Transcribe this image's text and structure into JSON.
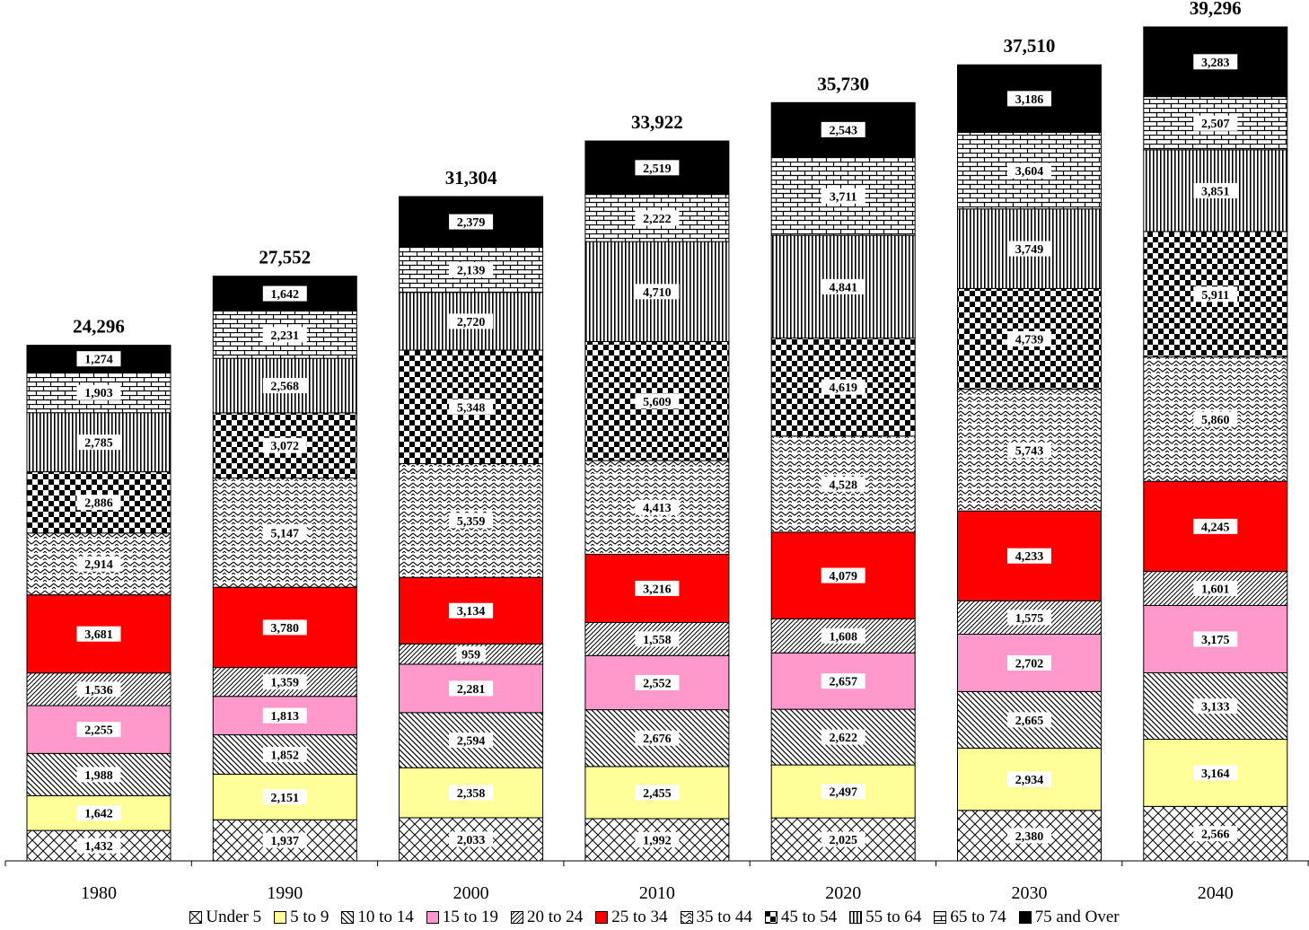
{
  "chart_data": {
    "type": "bar",
    "stacked": true,
    "categories": [
      "1980",
      "1990",
      "2000",
      "2010",
      "2020",
      "2030",
      "2040"
    ],
    "totals": [
      "24,296",
      "27,552",
      "31,304",
      "33,922",
      "35,730",
      "37,510",
      "39,296"
    ],
    "total_values": [
      24296,
      27552,
      31304,
      33922,
      35730,
      37510,
      39296
    ],
    "ylim": [
      0,
      40000
    ],
    "grid": false,
    "legend_position": "bottom",
    "series": [
      {
        "name": "Under 5",
        "pattern": "crosshatch",
        "color": "#000000",
        "values": [
          1432,
          1937,
          2033,
          1992,
          2025,
          2380,
          2566
        ],
        "labels": [
          "1,432",
          "1,937",
          "2,033",
          "1,992",
          "2,025",
          "2,380",
          "2,566"
        ]
      },
      {
        "name": "5 to 9",
        "pattern": "solid",
        "color": "#FFFF99",
        "values": [
          1642,
          2151,
          2358,
          2455,
          2497,
          2934,
          3164
        ],
        "labels": [
          "1,642",
          "2,151",
          "2,358",
          "2,455",
          "2,497",
          "2,934",
          "3,164"
        ]
      },
      {
        "name": "10 to 14",
        "pattern": "diag-down",
        "color": "#000000",
        "values": [
          1988,
          1852,
          2594,
          2676,
          2622,
          2665,
          3133
        ],
        "labels": [
          "1,988",
          "1,852",
          "2,594",
          "2,676",
          "2,622",
          "2,665",
          "3,133"
        ]
      },
      {
        "name": "15 to 19",
        "pattern": "solid",
        "color": "#FF99CC",
        "values": [
          2255,
          1813,
          2281,
          2552,
          2657,
          2702,
          3175
        ],
        "labels": [
          "2,255",
          "1,813",
          "2,281",
          "2,552",
          "2,657",
          "2,702",
          "3,175"
        ]
      },
      {
        "name": "20 to 24",
        "pattern": "diag-up",
        "color": "#000000",
        "values": [
          1536,
          1359,
          959,
          1558,
          1608,
          1575,
          1601
        ],
        "labels": [
          "1,536",
          "1,359",
          "959",
          "1,558",
          "1,608",
          "1,575",
          "1,601"
        ]
      },
      {
        "name": "25 to 34",
        "pattern": "solid",
        "color": "#FF0000",
        "values": [
          3681,
          3780,
          3134,
          3216,
          4079,
          4233,
          4245
        ],
        "labels": [
          "3,681",
          "3,780",
          "3,134",
          "3,216",
          "4,079",
          "4,233",
          "4,245"
        ]
      },
      {
        "name": "35 to 44",
        "pattern": "zigzag",
        "color": "#000000",
        "values": [
          2914,
          5147,
          5359,
          4413,
          4528,
          5743,
          5860
        ],
        "labels": [
          "2,914",
          "5,147",
          "5,359",
          "4,413",
          "4,528",
          "5,743",
          "5,860"
        ]
      },
      {
        "name": "45 to 54",
        "pattern": "checker",
        "color": "#000000",
        "values": [
          2886,
          3072,
          5348,
          5609,
          4619,
          4739,
          5911
        ],
        "labels": [
          "2,886",
          "3,072",
          "5,348",
          "5,609",
          "4,619",
          "4,739",
          "5,911"
        ]
      },
      {
        "name": "55 to 64",
        "pattern": "vertical",
        "color": "#000000",
        "values": [
          2785,
          2568,
          2720,
          4710,
          4841,
          3749,
          3851
        ],
        "labels": [
          "2,785",
          "2,568",
          "2,720",
          "4,710",
          "4,841",
          "3,749",
          "3,851"
        ]
      },
      {
        "name": "65 to 74",
        "pattern": "brick",
        "color": "#000000",
        "values": [
          1903,
          2231,
          2139,
          2222,
          3711,
          3604,
          2507
        ],
        "labels": [
          "1,903",
          "2,231",
          "2,139",
          "2,222",
          "3,711",
          "3,604",
          "2,507"
        ]
      },
      {
        "name": "75 and Over",
        "pattern": "solid",
        "color": "#000000",
        "values": [
          1274,
          1642,
          2379,
          2519,
          2543,
          3186,
          3283
        ],
        "labels": [
          "1,274",
          "1,642",
          "2,379",
          "2,519",
          "2,543",
          "3,186",
          "3,283"
        ]
      }
    ]
  }
}
